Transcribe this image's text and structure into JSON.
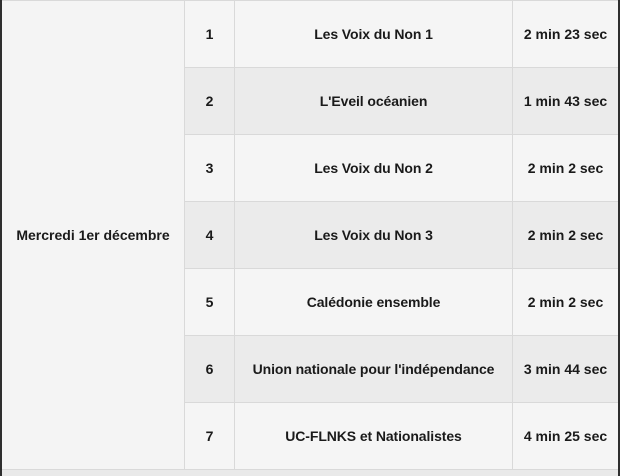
{
  "table": {
    "date_label": "Mercredi 1er décembre",
    "rows": [
      {
        "num": "1",
        "name": "Les Voix du Non 1",
        "duration": "2 min 23 sec"
      },
      {
        "num": "2",
        "name": "L'Eveil océanien",
        "duration": "1 min 43 sec"
      },
      {
        "num": "3",
        "name": "Les Voix du Non 2",
        "duration": "2 min 2 sec"
      },
      {
        "num": "4",
        "name": "Les Voix du Non 3",
        "duration": "2 min 2 sec"
      },
      {
        "num": "5",
        "name": "Calédonie ensemble",
        "duration": "2 min 2 sec"
      },
      {
        "num": "6",
        "name": "Union nationale pour l'indépendance",
        "duration": "3 min 44 sec"
      },
      {
        "num": "7",
        "name": "UC-FLNKS et Nationalistes",
        "duration": "4 min 25 sec"
      }
    ],
    "colors": {
      "row_odd_bg": "#f5f5f5",
      "row_even_bg": "#ebebeb",
      "date_cell_bg": "#f4f4f4",
      "gridline": "#d9d9d9",
      "outer_side_border": "#2e2e2e",
      "text": "#1a1a1a"
    }
  }
}
